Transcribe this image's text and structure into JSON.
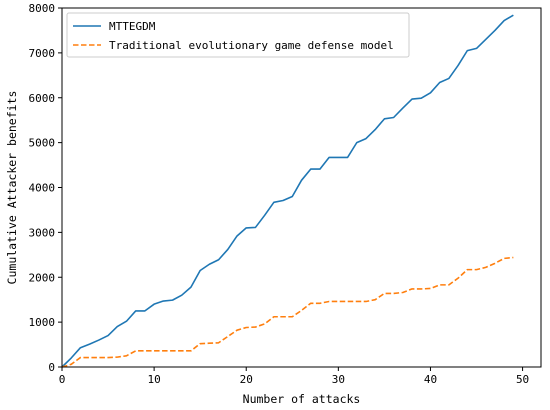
{
  "chart_data": {
    "type": "line",
    "xlabel": "Number of attacks",
    "ylabel": "Cumulative Attacker benefits",
    "xlim": [
      0,
      52
    ],
    "ylim": [
      0,
      8000
    ],
    "xticks": [
      0,
      10,
      20,
      30,
      40,
      50
    ],
    "yticks": [
      0,
      1000,
      2000,
      3000,
      4000,
      5000,
      6000,
      7000,
      8000
    ],
    "grid": false,
    "legend_position": "top-left",
    "series": [
      {
        "name": "MTTEGDM",
        "color": "#1f77b4",
        "style": "solid",
        "x": [
          0,
          1,
          2,
          3,
          4,
          5,
          6,
          7,
          8,
          9,
          10,
          11,
          12,
          13,
          14,
          15,
          16,
          17,
          18,
          19,
          20,
          21,
          22,
          23,
          24,
          25,
          26,
          27,
          28,
          29,
          30,
          31,
          32,
          33,
          34,
          35,
          36,
          37,
          38,
          39,
          40,
          41,
          42,
          43,
          44,
          45,
          46,
          47,
          48,
          49
        ],
        "y": [
          0,
          200,
          430,
          510,
          600,
          700,
          900,
          1020,
          1250,
          1250,
          1400,
          1470,
          1490,
          1600,
          1780,
          2150,
          2290,
          2390,
          2620,
          2920,
          3100,
          3110,
          3380,
          3670,
          3710,
          3800,
          4160,
          4410,
          4410,
          4670,
          4670,
          4670,
          5000,
          5090,
          5290,
          5530,
          5560,
          5770,
          5970,
          5990,
          6110,
          6340,
          6430,
          6720,
          7050,
          7100,
          7300,
          7500,
          7720,
          7840
        ]
      },
      {
        "name": "Traditional evolutionary game defense model",
        "color": "#ff7f0e",
        "style": "dashed",
        "x": [
          0,
          1,
          2,
          3,
          4,
          5,
          6,
          7,
          8,
          9,
          10,
          11,
          12,
          13,
          14,
          15,
          16,
          17,
          18,
          19,
          20,
          21,
          22,
          23,
          24,
          25,
          26,
          27,
          28,
          29,
          30,
          31,
          32,
          33,
          34,
          35,
          36,
          37,
          38,
          39,
          40,
          41,
          42,
          43,
          44,
          45,
          46,
          47,
          48,
          49
        ],
        "y": [
          0,
          60,
          210,
          210,
          210,
          210,
          220,
          250,
          360,
          360,
          360,
          360,
          360,
          360,
          360,
          520,
          530,
          540,
          680,
          820,
          880,
          890,
          960,
          1120,
          1120,
          1120,
          1260,
          1420,
          1420,
          1460,
          1460,
          1460,
          1460,
          1460,
          1500,
          1640,
          1640,
          1660,
          1740,
          1740,
          1750,
          1830,
          1830,
          1980,
          2170,
          2170,
          2220,
          2310,
          2420,
          2440
        ]
      }
    ]
  }
}
